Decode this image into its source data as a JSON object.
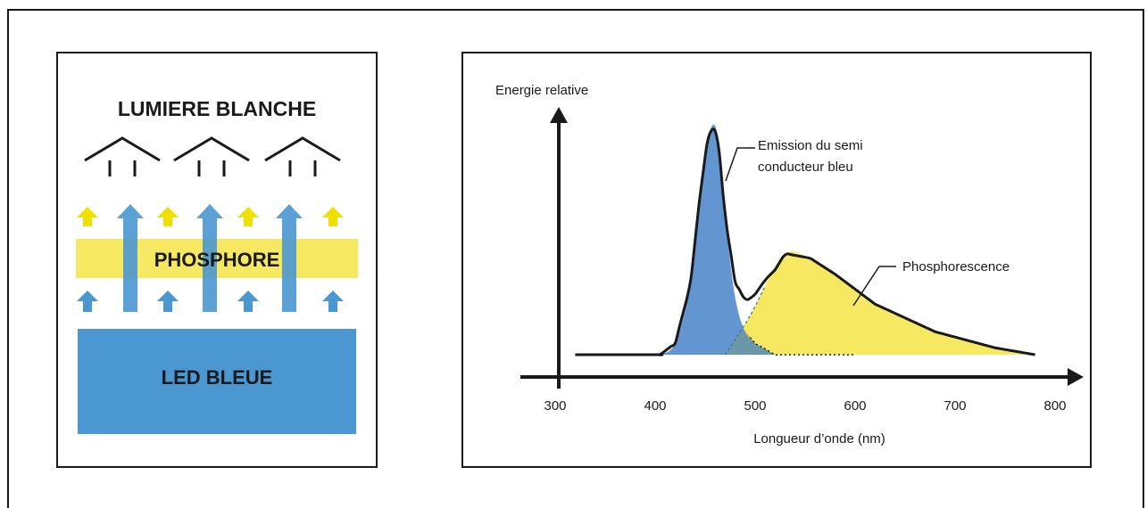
{
  "diagram": {
    "white_light_label": "LUMIERE BLANCHE",
    "phosphor_label": "PHOSPHORE",
    "led_label": "LED BLEUE",
    "colors": {
      "blue": "#4a97d2",
      "yellow": "#f6e961",
      "yellow_arrow": "#f0e000",
      "outline": "#1a1a1a"
    }
  },
  "chart_data": {
    "type": "area",
    "ylabel": "Energie relative",
    "xlabel": "Longueur d’onde (nm)",
    "xticks": [
      "300",
      "400",
      "500",
      "600",
      "700",
      "800"
    ],
    "xlim": [
      300,
      800
    ],
    "series": [
      {
        "name": "Emission du semi conducteur bleu",
        "x": [
          405,
          420,
          435,
          445,
          452,
          458,
          463,
          470,
          480,
          490,
          500,
          520
        ],
        "y": [
          0,
          0.05,
          0.3,
          0.7,
          0.92,
          1.0,
          0.93,
          0.6,
          0.25,
          0.1,
          0.05,
          0
        ]
      },
      {
        "name": "Phosphorescence",
        "x": [
          470,
          495,
          510,
          530,
          555,
          580,
          620,
          680,
          740,
          780
        ],
        "y": [
          0,
          0.17,
          0.3,
          0.44,
          0.42,
          0.35,
          0.22,
          0.1,
          0.03,
          0
        ]
      }
    ],
    "annotations": [
      "Emission du semi conducteur bleu",
      "Phosphorescence"
    ]
  }
}
